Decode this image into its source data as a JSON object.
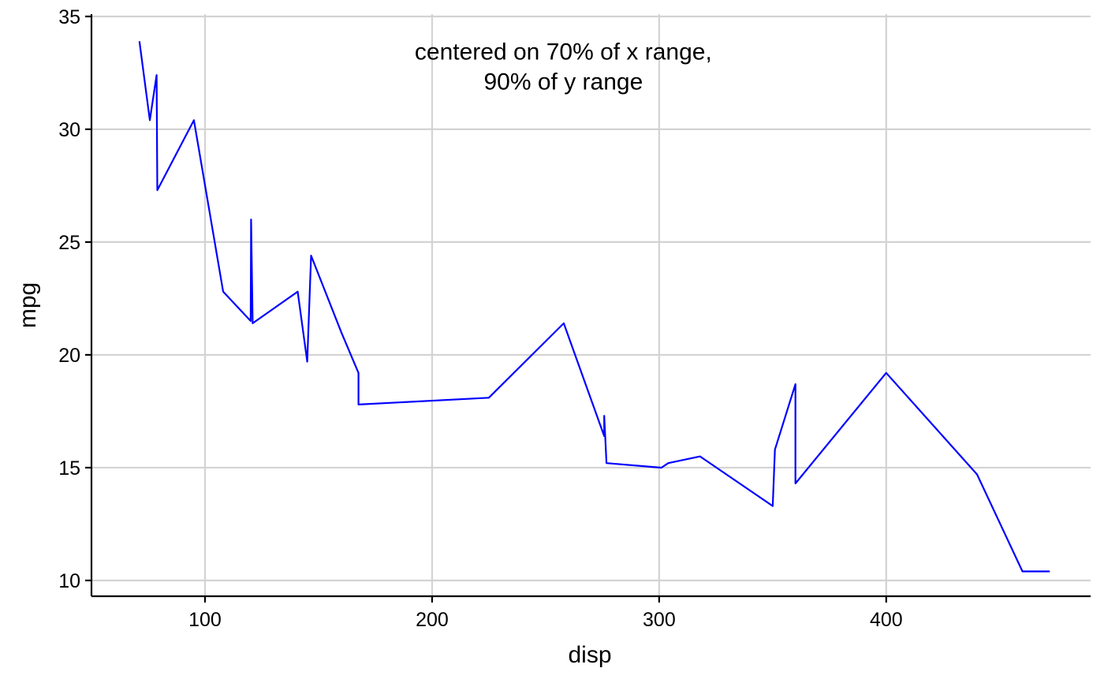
{
  "chart_data": {
    "type": "line",
    "xlabel": "disp",
    "ylabel": "mpg",
    "xlim": [
      50,
      490
    ],
    "ylim": [
      9.3,
      35.1
    ],
    "xticks": [
      100,
      200,
      300,
      400
    ],
    "yticks": [
      10,
      15,
      20,
      25,
      30,
      35
    ],
    "grid": "major",
    "annotation": {
      "lines": [
        "centered on 70% of x range,",
        "90% of y range"
      ],
      "x": 257.8,
      "y": 32.78
    },
    "series": [
      {
        "color": "#0000ff",
        "x": [
          71.1,
          75.7,
          78.7,
          79.0,
          95.1,
          108.0,
          120.1,
          120.3,
          121.0,
          140.8,
          145.0,
          146.7,
          160.0,
          167.6,
          167.6,
          225.0,
          258.0,
          275.8,
          275.8,
          276.8,
          301.0,
          304.0,
          318.0,
          350.0,
          351.0,
          360.0,
          360.0,
          400.0,
          440.0,
          460.0,
          472.0
        ],
        "y": [
          33.9,
          30.4,
          32.4,
          27.3,
          30.4,
          22.8,
          21.5,
          26.0,
          21.4,
          22.8,
          19.7,
          24.4,
          21.0,
          19.2,
          17.8,
          18.1,
          21.4,
          16.4,
          17.3,
          15.2,
          15.0,
          15.2,
          15.5,
          13.3,
          15.8,
          18.7,
          14.3,
          19.2,
          14.7,
          10.4,
          10.4
        ]
      }
    ]
  }
}
